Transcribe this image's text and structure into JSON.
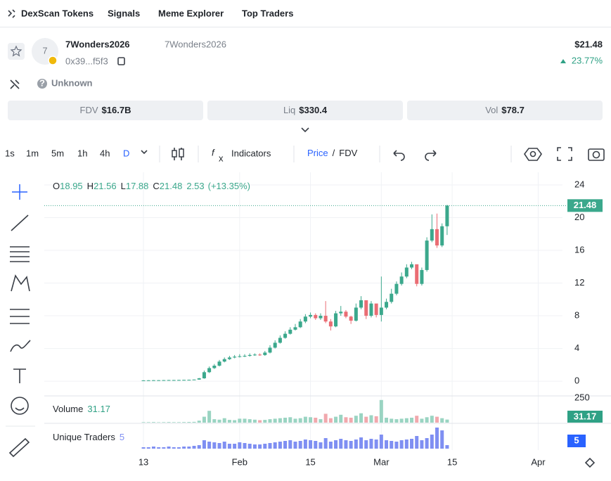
{
  "nav": [
    "DexScan Tokens",
    "Signals",
    "Meme Explorer",
    "Top Traders"
  ],
  "token": {
    "initial": "7",
    "name": "7Wonders2026",
    "ticker": "7Wonders2026",
    "address": "0x39...f5f3",
    "price": "$21.48",
    "change": "23.77%",
    "audit": "Unknown"
  },
  "stats": [
    {
      "label": "FDV",
      "value": "$16.7B"
    },
    {
      "label": "Liq",
      "value": "$330.4"
    },
    {
      "label": "Vol",
      "value": "$78.7"
    }
  ],
  "toolbar": {
    "intervals": [
      "1s",
      "1m",
      "5m",
      "1h",
      "4h",
      "D"
    ],
    "indicators": "Indicators",
    "price": "Price",
    "separator": "/",
    "fdv": "FDV"
  },
  "chart_data": {
    "type": "candlestick",
    "open": [
      0.09,
      0.1,
      0.11,
      0.12,
      0.12,
      0.13,
      0.14,
      0.14,
      0.15,
      0.16,
      0.17,
      0.2,
      0.35,
      1.1,
      1.6,
      1.9,
      2.4,
      2.7,
      2.9,
      3.0,
      3.05,
      3.1,
      3.2,
      3.25,
      3.2,
      3.5,
      4.1,
      4.7,
      5.3,
      5.8,
      6.3,
      6.6,
      7.3,
      7.9,
      8.1,
      7.7,
      8.0,
      7.3,
      6.7,
      8.3,
      8.5,
      7.9,
      7.4,
      9.0,
      9.9,
      8.0,
      9.5,
      8.1,
      9.0,
      9.7,
      10.7,
      11.9,
      12.8,
      13.9,
      14.3,
      11.9,
      13.6,
      17.2,
      18.6,
      16.6,
      18.95
    ],
    "high": [
      0.12,
      0.13,
      0.14,
      0.14,
      0.15,
      0.16,
      0.16,
      0.17,
      0.18,
      0.19,
      0.22,
      0.4,
      1.3,
      1.8,
      2.1,
      2.6,
      2.9,
      3.1,
      3.2,
      3.3,
      3.3,
      3.4,
      3.4,
      3.4,
      3.7,
      4.4,
      5.0,
      5.6,
      6.1,
      6.6,
      7.0,
      7.6,
      8.2,
      8.4,
      8.3,
      8.3,
      9.8,
      7.6,
      8.6,
      9.2,
      8.7,
      8.0,
      9.5,
      10.4,
      9.9,
      9.8,
      9.4,
      12.8,
      10.1,
      11.3,
      12.2,
      13.3,
      14.3,
      14.6,
      14.2,
      13.9,
      17.6,
      20.4,
      20.5,
      19.3,
      21.56
    ],
    "low": [
      0.07,
      0.08,
      0.09,
      0.1,
      0.1,
      0.11,
      0.12,
      0.12,
      0.13,
      0.14,
      0.15,
      0.18,
      0.3,
      1.0,
      1.5,
      1.8,
      2.3,
      2.6,
      2.8,
      2.9,
      2.95,
      3.0,
      3.1,
      3.1,
      3.1,
      3.4,
      4.0,
      4.6,
      5.2,
      5.7,
      6.2,
      6.5,
      7.1,
      7.7,
      7.5,
      7.5,
      7.1,
      6.2,
      6.6,
      8.0,
      7.7,
      7.0,
      7.3,
      8.8,
      7.6,
      7.8,
      7.8,
      7.3,
      8.8,
      9.5,
      10.5,
      11.7,
      12.6,
      13.7,
      11.6,
      11.7,
      13.4,
      17.0,
      16.3,
      16.4,
      17.88
    ],
    "close": [
      0.1,
      0.11,
      0.12,
      0.12,
      0.13,
      0.14,
      0.14,
      0.15,
      0.16,
      0.17,
      0.2,
      0.35,
      1.1,
      1.6,
      1.9,
      2.4,
      2.7,
      2.9,
      3.0,
      3.05,
      3.1,
      3.2,
      3.25,
      3.2,
      3.5,
      4.1,
      4.7,
      5.3,
      5.8,
      6.3,
      6.6,
      7.3,
      7.9,
      8.1,
      7.7,
      8.0,
      7.3,
      6.7,
      8.3,
      8.5,
      7.9,
      7.4,
      9.0,
      9.9,
      8.0,
      9.5,
      8.1,
      9.0,
      9.7,
      10.7,
      11.9,
      12.8,
      13.9,
      14.3,
      11.9,
      13.6,
      17.2,
      18.6,
      16.6,
      18.95,
      21.48
    ],
    "up_color": "#3ba88c",
    "down_color": "#ea6d74",
    "ohlc_labels": [
      "O",
      "H",
      "L",
      "C"
    ],
    "change": 2.53,
    "change_label": "(+13.35%)",
    "ylim": [
      -1.8,
      25.55
    ],
    "yticks": [
      0,
      4,
      8,
      12,
      16,
      20,
      24
    ],
    "xlim": [
      -19.6,
      82.8
    ],
    "xticks": [
      {
        "value": 0,
        "label": "13"
      },
      {
        "value": 19,
        "label": "Feb"
      },
      {
        "value": 33,
        "label": "15"
      },
      {
        "value": 47,
        "label": "Mar"
      },
      {
        "value": 61,
        "label": "15"
      },
      {
        "value": 78,
        "label": "Apr"
      }
    ],
    "grid": true,
    "volume": {
      "name": "Volume",
      "values": [
        5,
        5,
        6,
        4,
        5,
        6,
        5,
        5,
        6,
        7,
        8,
        20,
        60,
        120,
        35,
        30,
        45,
        28,
        25,
        40,
        40,
        35,
        30,
        25,
        28,
        35,
        40,
        45,
        50,
        55,
        40,
        45,
        60,
        55,
        50,
        35,
        90,
        45,
        60,
        80,
        55,
        50,
        70,
        95,
        60,
        75,
        65,
        230,
        50,
        40,
        35,
        40,
        45,
        50,
        70,
        40,
        55,
        70,
        60,
        45,
        31.17
      ],
      "ylim": [
        0,
        250
      ],
      "yticks": [
        250
      ],
      "up_color": "#9ad4c2",
      "down_color": "#f1a8ad",
      "legend_color": "#2fa185"
    },
    "traders": {
      "name": "Unique Traders",
      "values": [
        2,
        2,
        3,
        2,
        2,
        3,
        2,
        2,
        3,
        3,
        4,
        5,
        12,
        10,
        9,
        8,
        10,
        7,
        7,
        9,
        8,
        7,
        6,
        6,
        7,
        8,
        9,
        10,
        11,
        12,
        10,
        11,
        13,
        12,
        11,
        9,
        15,
        10,
        12,
        14,
        12,
        11,
        13,
        16,
        12,
        14,
        13,
        20,
        12,
        11,
        10,
        12,
        13,
        14,
        18,
        12,
        15,
        20,
        30,
        26,
        5
      ],
      "ylim": [
        0,
        34
      ],
      "color": "#7f8ff2"
    }
  }
}
